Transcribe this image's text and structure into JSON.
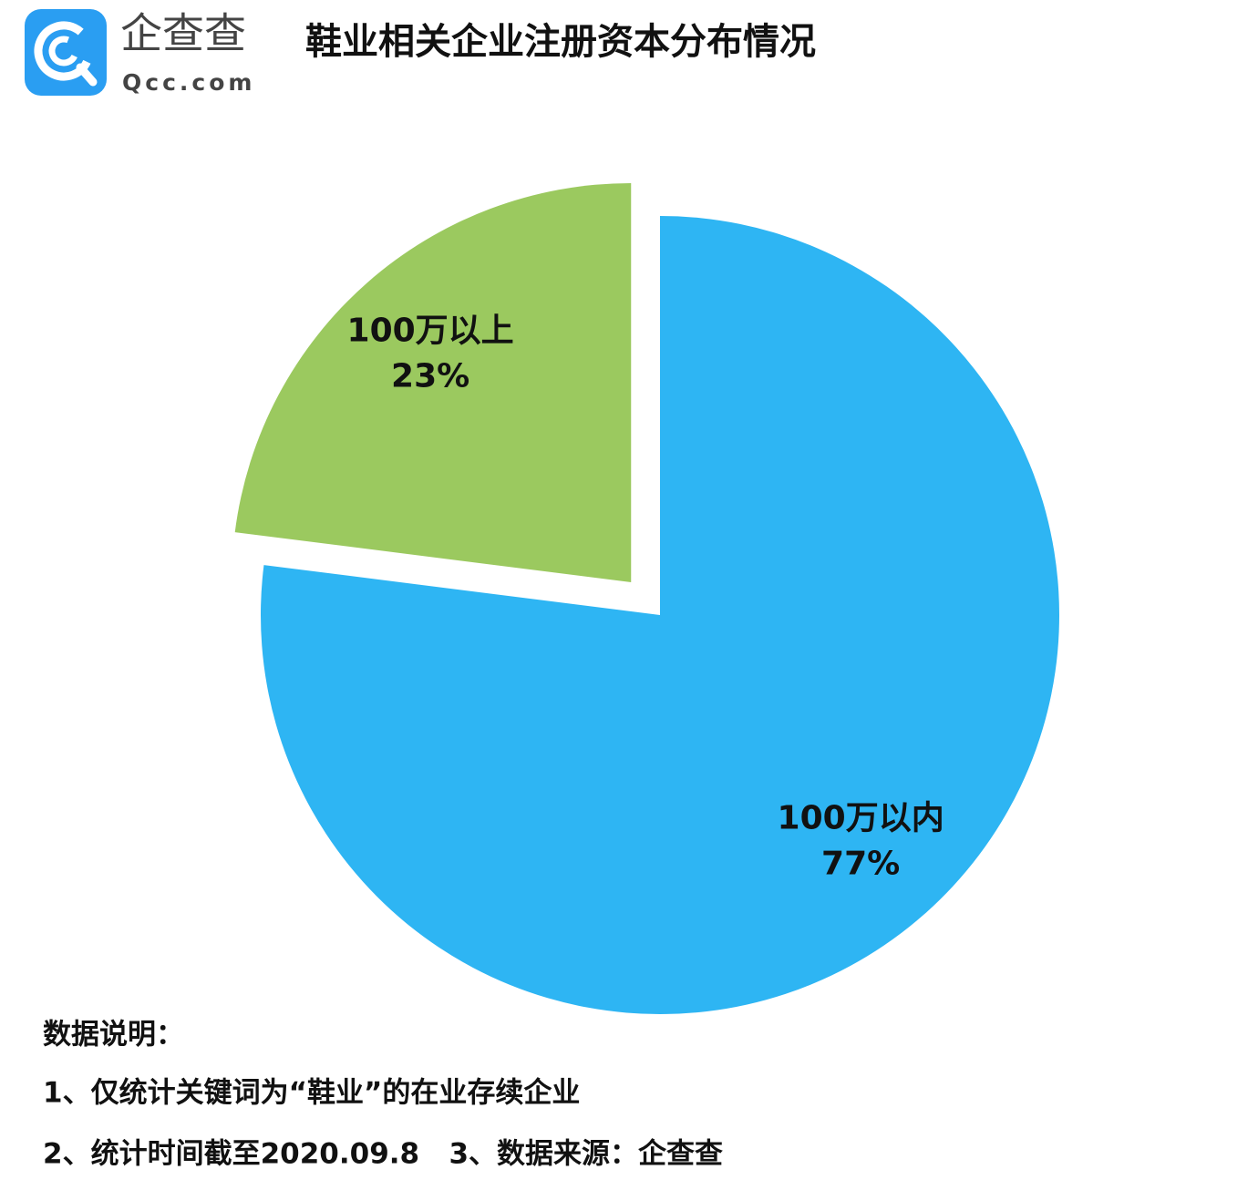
{
  "logo": {
    "name": "企查查",
    "domain": "Qcc.com"
  },
  "chart_data": {
    "type": "pie",
    "title": "鞋业相关企业注册资本分布情况",
    "categories": [
      "100万以内",
      "100万以上"
    ],
    "values": [
      77,
      23
    ],
    "value_labels": [
      "77%",
      "23%"
    ],
    "colors": [
      "#2eb5f3",
      "#9bc95f"
    ],
    "explode": [
      false,
      true
    ]
  },
  "notes": {
    "heading": "数据说明：",
    "lines": [
      "1、仅统计关键词为“鞋业”的在业存续企业",
      "2、统计时间截至2020.09.8   3、数据来源：企查查"
    ]
  }
}
